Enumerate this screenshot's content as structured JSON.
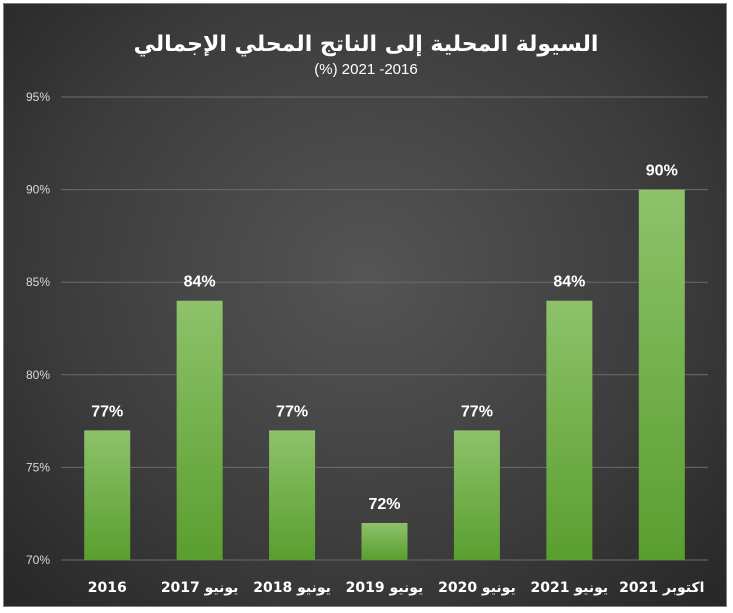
{
  "chart_data": {
    "type": "bar",
    "title": "السيولة المحلية إلى الناتج المحلي الإجمالي",
    "subtitle": "(%) 2021 -2016",
    "categories": [
      "2016",
      "يونيو 2017",
      "يونيو 2018",
      "يونيو 2019",
      "يونيو 2020",
      "يونيو 2021",
      "اكتوبر 2021"
    ],
    "values": [
      77,
      84,
      77,
      72,
      77,
      84,
      90
    ],
    "data_labels": [
      "77%",
      "84%",
      "77%",
      "72%",
      "77%",
      "84%",
      "90%"
    ],
    "y_ticks": [
      70,
      75,
      80,
      85,
      90,
      95
    ],
    "y_tick_labels": [
      "70%",
      "75%",
      "80%",
      "85%",
      "90%",
      "95%"
    ],
    "ylim": [
      70,
      95
    ],
    "grid": true,
    "legend": "none",
    "colors": {
      "bar_top": "#8dc26a",
      "bar_bottom": "#5a9e2f",
      "background": "#404040",
      "text": "#ffffff"
    }
  }
}
